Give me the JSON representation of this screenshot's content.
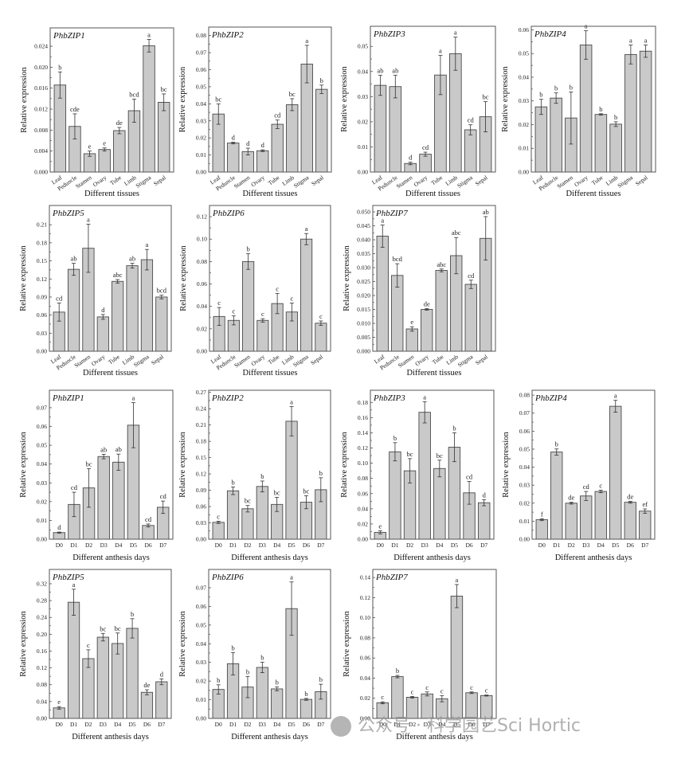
{
  "colors": {
    "bar": "#c9c9c9",
    "bar_edge": "#4a4a4a",
    "frame": "#555555"
  },
  "watermark": {
    "text": "公众号 · 科学园艺Sci Hortic"
  },
  "chart_data": [
    {
      "type": "bar",
      "title": "PhbZIP1",
      "xlabel": "Different tissues",
      "ylabel": "Relative expression",
      "ylim": [
        0,
        0.0275
      ],
      "yticks": [
        "0.000",
        "0.004",
        "0.008",
        "0.012",
        "0.016",
        "0.020",
        "0.024"
      ],
      "categories": [
        "Leaf",
        "Peduncle",
        "Stamen",
        "Ovary",
        "Tube",
        "Limb",
        "Stigma",
        "Sepal"
      ],
      "values": [
        0.0166,
        0.0087,
        0.0035,
        0.0043,
        0.0079,
        0.0117,
        0.0241,
        0.0133
      ],
      "errors": [
        0.0025,
        0.0024,
        0.0005,
        0.0003,
        0.0006,
        0.0022,
        0.0012,
        0.0016
      ],
      "letters": [
        "b",
        "cde",
        "e",
        "e",
        "de",
        "bcd",
        "a",
        "bc"
      ]
    },
    {
      "type": "bar",
      "title": "PhbZIP2",
      "xlabel": "Different tissues",
      "ylabel": "Relative expression",
      "ylim": [
        0,
        0.085
      ],
      "yticks": [
        "0.00",
        "0.01",
        "0.02",
        "0.03",
        "0.04",
        "0.05",
        "0.06",
        "0.07",
        "0.08"
      ],
      "categories": [
        "Leaf",
        "Peduncle",
        "Stamen",
        "Ovary",
        "Tube",
        "Limb",
        "Stigma",
        "Sepal"
      ],
      "values": [
        0.034,
        0.017,
        0.012,
        0.0125,
        0.028,
        0.0395,
        0.0633,
        0.0485
      ],
      "errors": [
        0.006,
        0.0005,
        0.002,
        0.0005,
        0.0025,
        0.0035,
        0.011,
        0.0025
      ],
      "letters": [
        "bc",
        "d",
        "d",
        "d",
        "cd",
        "bc",
        "a",
        "b"
      ]
    },
    {
      "type": "bar",
      "title": "PhbZIP3",
      "xlabel": "Different tissues",
      "ylabel": "Relative expression",
      "ylim": [
        0,
        0.058
      ],
      "yticks": [
        "0.00",
        "0.01",
        "0.02",
        "0.03",
        "0.04",
        "0.05"
      ],
      "categories": [
        "Leaf",
        "Peduncle",
        "Stamen",
        "Ovary",
        "Tube",
        "Limb",
        "Stigma",
        "Sepal"
      ],
      "values": [
        0.0345,
        0.034,
        0.0034,
        0.0071,
        0.0386,
        0.0471,
        0.0168,
        0.022
      ],
      "errors": [
        0.004,
        0.0045,
        0.0005,
        0.0008,
        0.0078,
        0.0066,
        0.002,
        0.006
      ],
      "letters": [
        "ab",
        "ab",
        "d",
        "cd",
        "a",
        "a",
        "cd",
        "bc"
      ]
    },
    {
      "type": "bar",
      "title": "PhbZIP4",
      "xlabel": "Different tissues",
      "ylabel": "Relative expression",
      "ylim": [
        0,
        0.0615
      ],
      "yticks": [
        "0.00",
        "0.01",
        "0.02",
        "0.03",
        "0.04",
        "0.05",
        "0.06"
      ],
      "categories": [
        "Leaf",
        "Peduncle",
        "Stamen",
        "Ovary",
        "Tube",
        "Limb",
        "Stigma",
        "Sepal"
      ],
      "values": [
        0.0275,
        0.0312,
        0.0228,
        0.0536,
        0.0243,
        0.0202,
        0.0496,
        0.051
      ],
      "errors": [
        0.0032,
        0.0022,
        0.011,
        0.006,
        0.0003,
        0.001,
        0.004,
        0.0026
      ],
      "letters": [
        "b",
        "b",
        "b",
        "a",
        "b",
        "b",
        "a",
        "a"
      ]
    },
    {
      "type": "bar",
      "title": "PhbZIP5",
      "xlabel": "Different tissues",
      "ylabel": "Relative expression",
      "ylim": [
        0,
        0.242
      ],
      "yticks": [
        "0.00",
        "0.03",
        "0.06",
        "0.09",
        "0.12",
        "0.15",
        "0.18",
        "0.21"
      ],
      "categories": [
        "Leaf",
        "Peduncle",
        "Stamen",
        "Ovary",
        "Tube",
        "Limb",
        "Stigma",
        "Sepal"
      ],
      "values": [
        0.065,
        0.136,
        0.171,
        0.057,
        0.116,
        0.142,
        0.152,
        0.09
      ],
      "errors": [
        0.015,
        0.01,
        0.04,
        0.004,
        0.003,
        0.004,
        0.017,
        0.003
      ],
      "letters": [
        "cd",
        "ab",
        "a",
        "d",
        "abc",
        "ab",
        "a",
        "bcd"
      ]
    },
    {
      "type": "bar",
      "title": "PhbZIP6",
      "xlabel": "Different tissues",
      "ylabel": "Relative expression",
      "ylim": [
        0,
        0.13
      ],
      "yticks": [
        "0.00",
        "0.02",
        "0.04",
        "0.06",
        "0.08",
        "0.10",
        "0.12"
      ],
      "categories": [
        "Leaf",
        "Peduncle",
        "Stamen",
        "Ovary",
        "Tube",
        "Limb",
        "Stigma",
        "Sepal"
      ],
      "values": [
        0.031,
        0.0275,
        0.08,
        0.0275,
        0.0425,
        0.035,
        0.1,
        0.025
      ],
      "errors": [
        0.008,
        0.004,
        0.007,
        0.0015,
        0.009,
        0.008,
        0.005,
        0.002
      ],
      "letters": [
        "c",
        "c",
        "b",
        "c",
        "c",
        "c",
        "a",
        "c"
      ]
    },
    {
      "type": "bar",
      "title": "PhbZIP7",
      "xlabel": "Different tissues",
      "ylabel": "Relative expression",
      "ylim": [
        0,
        0.0523
      ],
      "yticks": [
        "0.000",
        "0.005",
        "0.010",
        "0.015",
        "0.020",
        "0.025",
        "0.030",
        "0.035",
        "0.040",
        "0.045",
        "0.050"
      ],
      "categories": [
        "Leaf",
        "Peduncle",
        "Stamen",
        "Ovary",
        "Tube",
        "Limb",
        "Stigma",
        "Sepal"
      ],
      "values": [
        0.0413,
        0.0272,
        0.008,
        0.015,
        0.029,
        0.0343,
        0.024,
        0.0405
      ],
      "errors": [
        0.004,
        0.0042,
        0.0008,
        0.0003,
        0.0005,
        0.0065,
        0.0015,
        0.0078
      ],
      "letters": [
        "a",
        "bcd",
        "e",
        "de",
        "abc",
        "abc",
        "cd",
        "ab"
      ]
    },
    {
      "type": "bar",
      "title": "PhbZIP1",
      "xlabel": "Different anthesis days",
      "ylabel": "Relative expression",
      "ylim": [
        0,
        0.0793
      ],
      "yticks": [
        "0.00",
        "0.01",
        "0.02",
        "0.03",
        "0.04",
        "0.05",
        "0.06",
        "0.07"
      ],
      "categories": [
        "D0",
        "D1",
        "D2",
        "D3",
        "D4",
        "D5",
        "D6",
        "D7"
      ],
      "values": [
        0.0035,
        0.0185,
        0.0273,
        0.044,
        0.041,
        0.0607,
        0.0073,
        0.017
      ],
      "errors": [
        0.0003,
        0.0065,
        0.0103,
        0.0012,
        0.0043,
        0.012,
        0.0008,
        0.0033
      ],
      "letters": [
        "d",
        "cd",
        "bc",
        "ab",
        "ab",
        "a",
        "cd",
        "cd"
      ]
    },
    {
      "type": "bar",
      "title": "PhbZIP2",
      "xlabel": "Different anthesis days",
      "ylabel": "Relative expression",
      "ylim": [
        0,
        0.274
      ],
      "yticks": [
        "0.00",
        "0.03",
        "0.06",
        "0.09",
        "0.12",
        "0.15",
        "0.18",
        "0.21",
        "0.24",
        "0.27"
      ],
      "categories": [
        "D0",
        "D1",
        "D2",
        "D3",
        "D4",
        "D5",
        "D6",
        "D7"
      ],
      "values": [
        0.031,
        0.089,
        0.056,
        0.097,
        0.064,
        0.217,
        0.068,
        0.091
      ],
      "errors": [
        0.002,
        0.007,
        0.006,
        0.01,
        0.013,
        0.027,
        0.012,
        0.022
      ],
      "letters": [
        "c",
        "b",
        "bc",
        "b",
        "bc",
        "a",
        "bc",
        "b"
      ]
    },
    {
      "type": "bar",
      "title": "PhbZIP3",
      "xlabel": "Different anthesis days",
      "ylabel": "Relative expression",
      "ylim": [
        0,
        0.196
      ],
      "yticks": [
        "0.00",
        "0.02",
        "0.04",
        "0.06",
        "0.08",
        "0.10",
        "0.12",
        "0.14",
        "0.16",
        "0.18"
      ],
      "categories": [
        "D0",
        "D1",
        "D2",
        "D3",
        "D4",
        "D5",
        "D6",
        "D7"
      ],
      "values": [
        0.009,
        0.115,
        0.09,
        0.167,
        0.093,
        0.121,
        0.061,
        0.048
      ],
      "errors": [
        0.002,
        0.012,
        0.016,
        0.014,
        0.011,
        0.019,
        0.015,
        0.004
      ],
      "letters": [
        "e",
        "b",
        "bc",
        "a",
        "bc",
        "b",
        "cd",
        "d"
      ]
    },
    {
      "type": "bar",
      "title": "PhbZIP4",
      "xlabel": "Different anthesis days",
      "ylabel": "Relative expression",
      "ylim": [
        0,
        0.0827
      ],
      "yticks": [
        "0.00",
        "0.01",
        "0.02",
        "0.03",
        "0.04",
        "0.05",
        "0.06",
        "0.07",
        "0.08"
      ],
      "categories": [
        "D0",
        "D1",
        "D2",
        "D3",
        "D4",
        "D5",
        "D6",
        "D7"
      ],
      "values": [
        0.0108,
        0.0484,
        0.02,
        0.024,
        0.0265,
        0.0738,
        0.0205,
        0.0156
      ],
      "errors": [
        0.0005,
        0.0017,
        0.0005,
        0.0025,
        0.0007,
        0.0033,
        0.0005,
        0.0012
      ],
      "letters": [
        "f",
        "b",
        "de",
        "cd",
        "c",
        "a",
        "de",
        "ef"
      ]
    },
    {
      "type": "bar",
      "title": "PhbZIP5",
      "xlabel": "Different anthesis days",
      "ylabel": "Relative expression",
      "ylim": [
        0,
        0.354
      ],
      "yticks": [
        "0.00",
        "0.04",
        "0.08",
        "0.12",
        "0.16",
        "0.20",
        "0.24",
        "0.28",
        "0.32"
      ],
      "categories": [
        "D0",
        "D1",
        "D2",
        "D3",
        "D4",
        "D5",
        "D6",
        "D7"
      ],
      "values": [
        0.025,
        0.276,
        0.142,
        0.193,
        0.178,
        0.214,
        0.062,
        0.087
      ],
      "errors": [
        0.003,
        0.031,
        0.021,
        0.009,
        0.025,
        0.023,
        0.006,
        0.007
      ],
      "letters": [
        "e",
        "a",
        "c",
        "bc",
        "bc",
        "b",
        "de",
        "d"
      ]
    },
    {
      "type": "bar",
      "title": "PhbZIP6",
      "xlabel": "Different anthesis days",
      "ylabel": "Relative expression",
      "ylim": [
        0,
        0.0798
      ],
      "yticks": [
        "0.00",
        "0.01",
        "0.02",
        "0.03",
        "0.04",
        "0.05",
        "0.06",
        "0.07"
      ],
      "categories": [
        "D0",
        "D1",
        "D2",
        "D3",
        "D4",
        "D5",
        "D6",
        "D7"
      ],
      "values": [
        0.0155,
        0.0293,
        0.0168,
        0.0273,
        0.0158,
        0.0588,
        0.0102,
        0.0143
      ],
      "errors": [
        0.0025,
        0.006,
        0.0057,
        0.0028,
        0.001,
        0.0143,
        0.0005,
        0.004
      ],
      "letters": [
        "b",
        "b",
        "b",
        "b",
        "b",
        "a",
        "b",
        "b"
      ]
    },
    {
      "type": "bar",
      "title": "PhbZIP7",
      "xlabel": "Different anthesis days",
      "ylabel": "Relative expression",
      "ylim": [
        0,
        0.148
      ],
      "yticks": [
        "0.00",
        "0.02",
        "0.04",
        "0.06",
        "0.08",
        "0.10",
        "0.12",
        "0.14"
      ],
      "categories": [
        "D0",
        "D1",
        "D2",
        "D3",
        "D4",
        "D5",
        "D6",
        "D7"
      ],
      "values": [
        0.0155,
        0.0415,
        0.021,
        0.0243,
        0.0195,
        0.1215,
        0.0255,
        0.0227
      ],
      "errors": [
        0.001,
        0.0012,
        0.0008,
        0.002,
        0.003,
        0.0115,
        0.0008,
        0.0005
      ],
      "letters": [
        "c",
        "b",
        "c",
        "c",
        "c",
        "a",
        "c",
        "c"
      ]
    }
  ]
}
